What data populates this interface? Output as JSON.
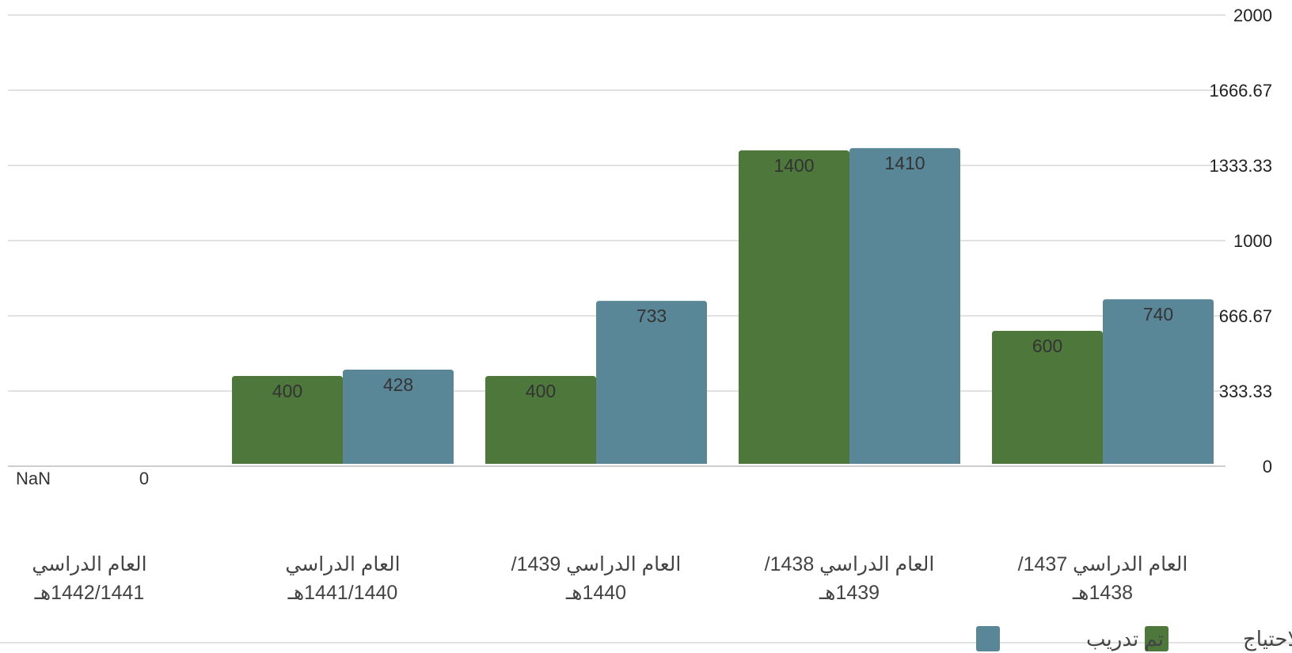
{
  "chart_data": {
    "type": "bar",
    "direction": "rtl",
    "categories": [
      [
        "العام الدراسي 1437/",
        "1438هـ"
      ],
      [
        "العام الدراسي 1438/",
        "1439هـ"
      ],
      [
        "العام الدراسي 1439/",
        "1440هـ"
      ],
      [
        "العام الدراسي",
        "1441/1440هـ"
      ],
      [
        "العام الدراسي",
        "1442/1441هـ"
      ]
    ],
    "series": [
      {
        "name": "الاحتياج",
        "color": "#4d773b",
        "values": [
          600,
          1400,
          400,
          400,
          null
        ]
      },
      {
        "name": "تم تدريب",
        "color": "#5a8798",
        "values": [
          740,
          1410,
          733,
          428,
          null
        ]
      }
    ],
    "empty_category_labels": [
      "NaN",
      "0"
    ],
    "y_ticks": [
      "0",
      "333.33",
      "666.67",
      "1000",
      "1333.33",
      "1666.67",
      "2000"
    ],
    "ylim": [
      0,
      2000
    ],
    "y_axis_side": "right",
    "grid": true,
    "legend_position": "bottom-right"
  }
}
